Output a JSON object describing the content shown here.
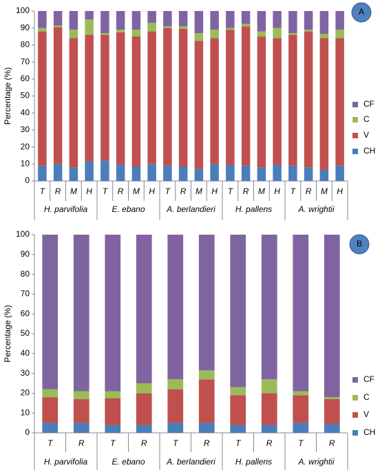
{
  "chart_data": [
    {
      "type": "bar",
      "stacked": true,
      "panel_label": "A",
      "y_label": "Percentage (%)",
      "groups": [
        "H. parvifolia",
        "E. ebano",
        "A. berlandieri",
        "H. pallens",
        "A. wrightii"
      ],
      "categories": [
        "T",
        "R",
        "M",
        "H",
        "T",
        "R",
        "M",
        "H",
        "T",
        "R",
        "M",
        "H",
        "T",
        "R",
        "M",
        "H",
        "T",
        "R",
        "M",
        "H"
      ],
      "series": [
        {
          "name": "CH",
          "color": "#4a7ebb",
          "values": [
            9,
            10,
            8,
            11.5,
            12,
            9.5,
            8.5,
            10,
            9,
            8.5,
            7,
            10,
            9.5,
            9,
            8,
            9.5,
            9,
            8,
            6.5,
            9
          ]
        },
        {
          "name": "V",
          "color": "#c0504d",
          "values": [
            79,
            80.5,
            76,
            74.5,
            74,
            78,
            76.5,
            78,
            81,
            81,
            75.5,
            74,
            79.5,
            82,
            77,
            74.5,
            77,
            80,
            77.5,
            75
          ]
        },
        {
          "name": "C",
          "color": "#9bbb59",
          "values": [
            2,
            1,
            5,
            9,
            1,
            1.5,
            4,
            5,
            1,
            1.5,
            4.5,
            5,
            1,
            1.5,
            3,
            6,
            1,
            1,
            2.5,
            5
          ]
        },
        {
          "name": "CF",
          "color": "#8064a2",
          "values": [
            10,
            8.5,
            11,
            5,
            13,
            11,
            11,
            7,
            9,
            9,
            13,
            11,
            10,
            7.5,
            12,
            10,
            13,
            11,
            13.5,
            11
          ]
        }
      ],
      "ylim": [
        0,
        100
      ],
      "yticks": [
        0,
        10,
        20,
        30,
        40,
        50,
        60,
        70,
        80,
        90,
        100
      ],
      "grid": false,
      "legend": "right"
    },
    {
      "type": "bar",
      "stacked": true,
      "panel_label": "B",
      "y_label": "Percentage (%)",
      "groups": [
        "H. parvifolia",
        "E. ebano",
        "A. berlandieri",
        "H. pallens",
        "A. wrightii"
      ],
      "categories": [
        "T",
        "R",
        "T",
        "R",
        "T",
        "R",
        "T",
        "R",
        "T",
        "R"
      ],
      "series": [
        {
          "name": "CH",
          "color": "#4a7ebb",
          "values": [
            5,
            5,
            4,
            4,
            5,
            5,
            4,
            4,
            5,
            4.5
          ]
        },
        {
          "name": "V",
          "color": "#c0504d",
          "values": [
            13,
            12,
            13.5,
            16,
            17,
            22,
            15,
            16,
            14,
            12.5
          ]
        },
        {
          "name": "C",
          "color": "#9bbb59",
          "values": [
            4,
            4,
            3.5,
            5,
            5,
            4.5,
            4,
            7,
            2,
            1
          ]
        },
        {
          "name": "CF",
          "color": "#8064a2",
          "values": [
            78,
            79,
            79,
            75,
            73,
            68.5,
            77,
            73,
            79,
            82
          ]
        }
      ],
      "ylim": [
        0,
        100
      ],
      "yticks": [
        0,
        10,
        20,
        30,
        40,
        50,
        60,
        70,
        80,
        90,
        100
      ],
      "grid": false,
      "legend": "right"
    }
  ]
}
